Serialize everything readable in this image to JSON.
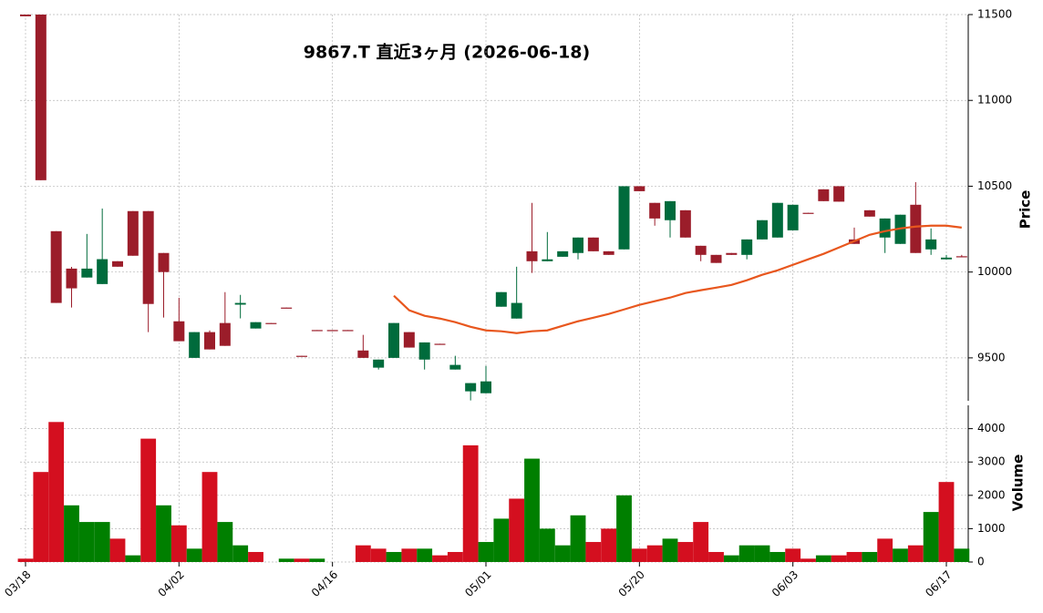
{
  "chart_data": {
    "type": "candlestick",
    "title": "9867.T  直近3ヶ月  (2026-06-18)",
    "ylabel": "Price",
    "y2label": "Volume",
    "categories": [
      "03/18",
      null,
      null,
      null,
      null,
      null,
      null,
      null,
      null,
      null,
      "04/02",
      null,
      null,
      null,
      null,
      null,
      null,
      null,
      null,
      null,
      "04/16",
      null,
      null,
      null,
      null,
      null,
      null,
      null,
      null,
      null,
      "05/01",
      null,
      null,
      null,
      null,
      null,
      null,
      null,
      null,
      null,
      "05/20",
      null,
      null,
      null,
      null,
      null,
      null,
      null,
      null,
      null,
      "06/03",
      null,
      null,
      null,
      null,
      null,
      null,
      null,
      null,
      null,
      "06/17",
      null
    ],
    "open": [
      11500,
      11500,
      10238,
      10020,
      9968,
      9930,
      10063,
      10355,
      10355,
      10111,
      9713,
      9500,
      9650,
      9703,
      9810,
      9671,
      9703,
      9793,
      9512,
      9662,
      9662,
      9662,
      9543,
      9443,
      9500,
      9650,
      9490,
      9582,
      9432,
      9305,
      9294,
      9798,
      9729,
      10121,
      10063,
      10089,
      10111,
      10201,
      10121,
      10132,
      10500,
      10403,
      10302,
      10360,
      10153,
      10100,
      10111,
      10100,
      10190,
      10201,
      10243,
      10345,
      10482,
      10500,
      10190,
      10360,
      10201,
      10164,
      10392,
      10132,
      10074,
      10092
    ],
    "high": [
      11500,
      11500,
      10238,
      10030,
      10222,
      10370,
      10063,
      10355,
      10355,
      10111,
      9850,
      9650,
      9660,
      9883,
      9867,
      9708,
      9703,
      9793,
      9512,
      9662,
      9662,
      9662,
      9634,
      9490,
      9703,
      9650,
      9590,
      9582,
      9512,
      9353,
      9453,
      9883,
      10031,
      10403,
      10233,
      10121,
      10201,
      10201,
      10121,
      10500,
      10500,
      10403,
      10413,
      10360,
      10153,
      10100,
      10111,
      10190,
      10302,
      10403,
      10392,
      10345,
      10482,
      10500,
      10259,
      10360,
      10312,
      10334,
      10524,
      10254,
      10100,
      10100
    ],
    "low": [
      11490,
      10535,
      9820,
      9793,
      9968,
      9930,
      10031,
      10095,
      9650,
      9735,
      9597,
      9500,
      9549,
      9570,
      9730,
      9671,
      9700,
      9790,
      9510,
      9660,
      9660,
      9660,
      9500,
      9432,
      9500,
      9560,
      9432,
      9580,
      9432,
      9252,
      9294,
      9798,
      9729,
      9995,
      10063,
      10089,
      10074,
      10121,
      10100,
      10132,
      10471,
      10270,
      10201,
      10201,
      10063,
      10053,
      10100,
      10074,
      10190,
      10201,
      10243,
      10343,
      10413,
      10410,
      10164,
      10323,
      10111,
      10164,
      10111,
      10100,
      10074,
      10089
    ],
    "close": [
      11490,
      10535,
      9820,
      9905,
      10020,
      10075,
      10031,
      10095,
      9814,
      10000,
      9597,
      9650,
      9549,
      9570,
      9820,
      9708,
      9700,
      9790,
      9510,
      9660,
      9660,
      9660,
      9500,
      9490,
      9703,
      9560,
      9590,
      9580,
      9459,
      9353,
      9363,
      9883,
      9820,
      10063,
      10074,
      10121,
      10201,
      10121,
      10100,
      10500,
      10471,
      10312,
      10413,
      10201,
      10100,
      10053,
      10100,
      10190,
      10302,
      10403,
      10392,
      10343,
      10413,
      10410,
      10164,
      10323,
      10312,
      10334,
      10111,
      10190,
      10084,
      10089
    ],
    "volume": [
      100,
      2700,
      4200,
      1700,
      1200,
      1200,
      700,
      200,
      3700,
      1700,
      1100,
      400,
      2700,
      1200,
      500,
      300,
      0,
      100,
      100,
      100,
      0,
      0,
      500,
      400,
      300,
      400,
      400,
      200,
      300,
      3500,
      600,
      1300,
      1900,
      3100,
      1000,
      500,
      1400,
      600,
      1000,
      2000,
      400,
      500,
      700,
      600,
      1200,
      300,
      200,
      500,
      500,
      300,
      400,
      100,
      200,
      200,
      300,
      300,
      700,
      400,
      500,
      1500,
      2400,
      400
    ],
    "ma_values": [
      null,
      null,
      null,
      null,
      null,
      null,
      null,
      null,
      null,
      null,
      null,
      null,
      null,
      null,
      null,
      null,
      null,
      null,
      null,
      null,
      null,
      null,
      null,
      null,
      9862,
      9777,
      9745,
      9729,
      9708,
      9681,
      9660,
      9655,
      9644,
      9655,
      9660,
      9687,
      9713,
      9734,
      9756,
      9782,
      9809,
      9830,
      9851,
      9878,
      9894,
      9909,
      9925,
      9952,
      9984,
      10010,
      10042,
      10074,
      10106,
      10143,
      10180,
      10217,
      10238,
      10254,
      10265,
      10270,
      10270,
      10259
    ],
    "ma_color": "#e8571e",
    "up_color": "#006b3c",
    "down_color": "#9b1d2a",
    "volume_up_color": "#007f00",
    "volume_down_color": "#d40f1f",
    "ylim": [
      9250,
      11500
    ],
    "yticks": [
      9500,
      10000,
      10500,
      11000,
      11500
    ],
    "y2lim": [
      0,
      4700
    ],
    "y2ticks": [
      0,
      1000,
      2000,
      3000,
      4000
    ],
    "grid": true
  }
}
